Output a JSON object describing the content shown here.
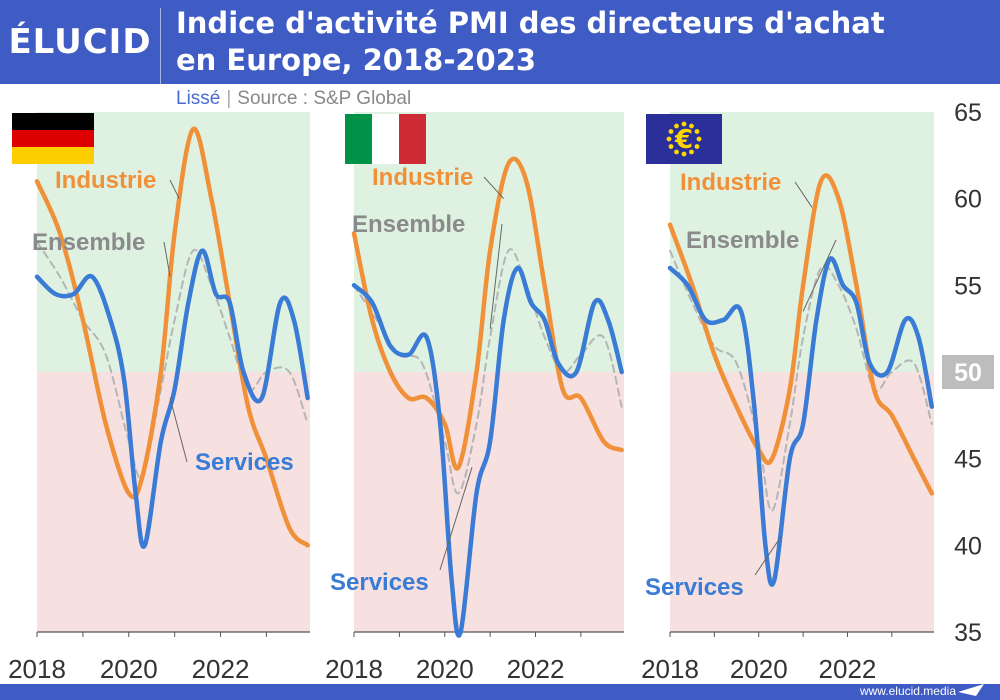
{
  "header": {
    "logo": "ÉLUCID",
    "title_line1": "Indice d'activité PMI des directeurs d'achat",
    "title_line2": "en Europe, 2018-2023",
    "subtitle_left": "Lissé",
    "subtitle_sep": "|",
    "subtitle_right": "Source : S&P Global"
  },
  "footer": {
    "site": "www.elucid.media"
  },
  "colors": {
    "header_bg": "#3f5bc4",
    "industrie": "#f0913a",
    "services": "#3a7bd5",
    "ensemble": "#b5b5b5",
    "zone_expansion": "#dff2e2",
    "zone_contraction": "#f6e0e0",
    "label_ensemble": "#8a8a8a"
  },
  "chart_data": [
    {
      "type": "line",
      "panel": "Allemagne",
      "flag": "germany-flag",
      "x_ticks": [
        "2018",
        "2020",
        "2022"
      ],
      "ylim": [
        35,
        65
      ],
      "threshold": 50,
      "series": [
        {
          "name": "Industrie",
          "x": [
            2018.0,
            2018.5,
            2019.0,
            2019.5,
            2020.0,
            2020.3,
            2020.7,
            2021.0,
            2021.4,
            2021.8,
            2022.2,
            2022.6,
            2023.0,
            2023.5,
            2023.9
          ],
          "values": [
            61,
            58,
            53,
            47,
            43,
            44,
            50,
            58,
            64,
            60,
            54,
            48,
            45,
            41,
            40
          ]
        },
        {
          "name": "Services",
          "x": [
            2018.0,
            2018.4,
            2018.8,
            2019.2,
            2019.6,
            2019.9,
            2020.15,
            2020.35,
            2020.7,
            2021.0,
            2021.3,
            2021.6,
            2021.9,
            2022.2,
            2022.5,
            2022.9,
            2023.3,
            2023.6,
            2023.9
          ],
          "values": [
            55.5,
            54.5,
            54.5,
            55.5,
            53,
            49.5,
            43,
            40,
            46,
            49,
            54,
            57,
            54.5,
            54,
            50,
            48.5,
            54,
            53,
            48.5
          ]
        },
        {
          "name": "Ensemble",
          "x": [
            2018.0,
            2018.5,
            2019.0,
            2019.5,
            2020.0,
            2020.3,
            2020.7,
            2021.0,
            2021.4,
            2021.8,
            2022.2,
            2022.6,
            2023.0,
            2023.5,
            2023.9
          ],
          "values": [
            57.5,
            55.5,
            53,
            51,
            46,
            44,
            49,
            53,
            57,
            55,
            52,
            49,
            50,
            50,
            47
          ]
        }
      ],
      "labels": {
        "industrie": "Industrie",
        "services": "Services",
        "ensemble": "Ensemble"
      }
    },
    {
      "type": "line",
      "panel": "Italie",
      "flag": "italy-flag",
      "x_ticks": [
        "2018",
        "2020",
        "2022"
      ],
      "ylim": [
        35,
        65
      ],
      "threshold": 50,
      "series": [
        {
          "name": "Industrie",
          "x": [
            2018.0,
            2018.4,
            2018.8,
            2019.2,
            2019.6,
            2020.0,
            2020.3,
            2020.7,
            2021.0,
            2021.4,
            2021.8,
            2022.2,
            2022.6,
            2023.0,
            2023.5,
            2023.9
          ],
          "values": [
            58,
            53,
            50,
            48.5,
            48.5,
            47,
            44.5,
            50,
            57,
            62,
            61,
            55,
            49,
            48.5,
            46,
            45.5
          ]
        },
        {
          "name": "Services",
          "x": [
            2018.0,
            2018.4,
            2018.8,
            2019.2,
            2019.6,
            2019.9,
            2020.15,
            2020.35,
            2020.7,
            2021.0,
            2021.3,
            2021.6,
            2021.9,
            2022.2,
            2022.5,
            2022.9,
            2023.3,
            2023.6,
            2023.9
          ],
          "values": [
            55,
            54,
            51.5,
            51,
            52,
            47,
            38,
            35,
            43,
            46,
            53,
            56,
            54,
            53,
            50.5,
            50,
            54,
            53,
            50
          ]
        },
        {
          "name": "Ensemble",
          "x": [
            2018.0,
            2018.5,
            2019.0,
            2019.5,
            2020.0,
            2020.3,
            2020.7,
            2021.0,
            2021.4,
            2021.8,
            2022.2,
            2022.6,
            2023.0,
            2023.5,
            2023.9
          ],
          "values": [
            55,
            53,
            51,
            50.5,
            46,
            43,
            47,
            52,
            57,
            55,
            52,
            50,
            51,
            52,
            48
          ]
        }
      ],
      "labels": {
        "industrie": "Industrie",
        "services": "Services",
        "ensemble": "Ensemble"
      }
    },
    {
      "type": "line",
      "panel": "Zone euro",
      "flag": "eu-flag",
      "x_ticks": [
        "2018",
        "2020",
        "2022"
      ],
      "ylim": [
        35,
        65
      ],
      "threshold": 50,
      "series": [
        {
          "name": "Industrie",
          "x": [
            2018.0,
            2018.5,
            2019.0,
            2019.5,
            2020.0,
            2020.3,
            2020.7,
            2021.0,
            2021.4,
            2021.8,
            2022.2,
            2022.6,
            2023.0,
            2023.5,
            2023.9
          ],
          "values": [
            58.5,
            55,
            51,
            48,
            45.5,
            45,
            49,
            55,
            61,
            60,
            55,
            49,
            47.5,
            45,
            43
          ]
        },
        {
          "name": "Services",
          "x": [
            2018.0,
            2018.4,
            2018.8,
            2019.2,
            2019.6,
            2019.9,
            2020.15,
            2020.35,
            2020.7,
            2021.0,
            2021.3,
            2021.6,
            2021.9,
            2022.2,
            2022.5,
            2022.9,
            2023.3,
            2023.6,
            2023.9
          ],
          "values": [
            56,
            55,
            53,
            53,
            53.5,
            48,
            40,
            38,
            45,
            47,
            53,
            56.5,
            55,
            54,
            50.5,
            50,
            53,
            52,
            48
          ]
        },
        {
          "name": "Ensemble",
          "x": [
            2018.0,
            2018.5,
            2019.0,
            2019.5,
            2020.0,
            2020.3,
            2020.7,
            2021.0,
            2021.4,
            2021.8,
            2022.2,
            2022.6,
            2023.0,
            2023.5,
            2023.9
          ],
          "values": [
            57,
            54,
            51.5,
            50.5,
            46,
            42,
            47,
            52,
            56,
            55,
            52.5,
            49,
            50,
            50.5,
            47
          ]
        }
      ],
      "labels": {
        "industrie": "Industrie",
        "services": "Services",
        "ensemble": "Ensemble"
      }
    }
  ],
  "y_axis": {
    "ticks": [
      35,
      40,
      45,
      50,
      55,
      60,
      65
    ]
  }
}
